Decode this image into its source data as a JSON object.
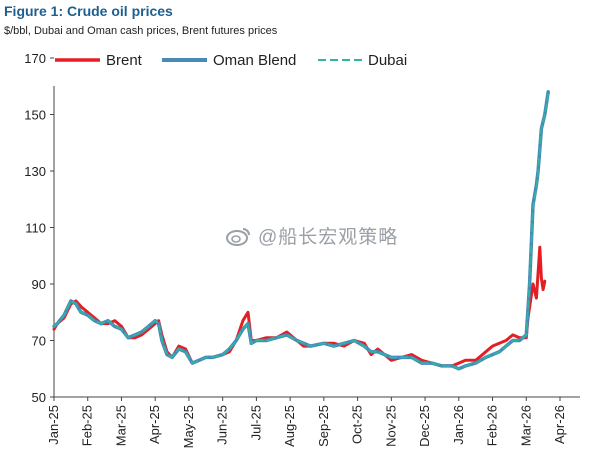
{
  "header": {
    "title": "Figure 1: Crude oil prices",
    "subtitle": "$/bbl, Dubai and Oman cash prices, Brent futures prices"
  },
  "watermark": {
    "text": "@船长宏观策略",
    "icon": "weibo-icon"
  },
  "colors": {
    "brent": "#e31e24",
    "oman": "#4a88b8",
    "dubai": "#2fb3a3"
  },
  "chart_data": {
    "type": "line",
    "title": "Figure 1: Crude oil prices",
    "ylabel": "$/bbl",
    "ylim": [
      50,
      170
    ],
    "yticks": [
      50,
      70,
      90,
      110,
      130,
      150,
      170
    ],
    "xticks": [
      "Jan-25",
      "Feb-25",
      "Mar-25",
      "Apr-25",
      "May-25",
      "Jun-25",
      "Jul-25",
      "Aug-25",
      "Sep-25",
      "Oct-25",
      "Nov-25",
      "Dec-25",
      "Jan-26",
      "Feb-26",
      "Mar-26",
      "Apr-26"
    ],
    "xrange": [
      0,
      15
    ],
    "legend_position": "top",
    "series": [
      {
        "name": "Brent",
        "style": "solid",
        "x": [
          0,
          0.1,
          0.3,
          0.5,
          0.65,
          0.8,
          1.0,
          1.2,
          1.4,
          1.6,
          1.8,
          2.0,
          2.2,
          2.4,
          2.6,
          2.8,
          3.0,
          3.1,
          3.2,
          3.35,
          3.5,
          3.7,
          3.9,
          4.1,
          4.3,
          4.5,
          4.7,
          5.0,
          5.2,
          5.4,
          5.6,
          5.75,
          5.85,
          6.0,
          6.3,
          6.6,
          6.9,
          7.2,
          7.4,
          7.6,
          8.0,
          8.3,
          8.6,
          8.9,
          9.2,
          9.4,
          9.6,
          9.8,
          10.0,
          10.3,
          10.6,
          10.9,
          11.2,
          11.5,
          11.8,
          12.0,
          12.2,
          12.5,
          12.8,
          13.0,
          13.2,
          13.4,
          13.6,
          13.8,
          14.0,
          14.05,
          14.2,
          14.3,
          14.4,
          14.45,
          14.5,
          14.55
        ],
        "y": [
          74,
          76,
          78,
          83,
          84,
          82,
          80,
          78,
          76,
          76,
          77,
          75,
          71,
          71,
          72,
          74,
          76,
          77,
          72,
          66,
          64,
          68,
          67,
          62,
          63,
          64,
          64,
          65,
          66,
          70,
          77,
          80,
          70,
          70,
          71,
          71,
          73,
          70,
          68,
          68,
          69,
          69,
          68,
          70,
          69,
          65,
          67,
          65,
          63,
          64,
          65,
          63,
          62,
          61,
          61,
          62,
          63,
          63,
          66,
          68,
          69,
          70,
          72,
          71,
          71,
          78,
          90,
          85,
          103,
          92,
          88,
          91
        ]
      },
      {
        "name": "Oman Blend",
        "style": "solid",
        "x": [
          0,
          0.1,
          0.3,
          0.5,
          0.65,
          0.8,
          1.0,
          1.2,
          1.4,
          1.6,
          1.8,
          2.0,
          2.2,
          2.4,
          2.6,
          2.8,
          3.0,
          3.1,
          3.2,
          3.35,
          3.5,
          3.7,
          3.9,
          4.1,
          4.3,
          4.5,
          4.7,
          5.0,
          5.2,
          5.4,
          5.6,
          5.75,
          5.85,
          6.0,
          6.3,
          6.6,
          6.9,
          7.2,
          7.4,
          7.6,
          8.0,
          8.3,
          8.6,
          8.9,
          9.2,
          9.4,
          9.6,
          9.8,
          10.0,
          10.3,
          10.6,
          10.9,
          11.2,
          11.5,
          11.8,
          12.0,
          12.2,
          12.5,
          12.8,
          13.0,
          13.2,
          13.4,
          13.6,
          13.8,
          14.0,
          14.1,
          14.2,
          14.3,
          14.35,
          14.45,
          14.55,
          14.65
        ],
        "y": [
          75,
          76,
          79,
          84,
          83,
          80,
          79,
          77,
          76,
          77,
          75,
          74,
          71,
          72,
          73,
          75,
          77,
          76,
          70,
          65,
          64,
          67,
          66,
          62,
          63,
          64,
          64,
          65,
          67,
          70,
          74,
          76,
          69,
          70,
          70,
          71,
          72,
          70,
          69,
          68,
          69,
          68,
          69,
          70,
          68,
          66,
          66,
          65,
          64,
          64,
          64,
          62,
          62,
          61,
          61,
          60,
          61,
          62,
          64,
          65,
          66,
          68,
          70,
          70,
          72,
          90,
          118,
          125,
          130,
          145,
          150,
          158
        ]
      },
      {
        "name": "Dubai",
        "style": "dashed",
        "x": [
          0,
          0.1,
          0.3,
          0.5,
          0.65,
          0.8,
          1.0,
          1.2,
          1.4,
          1.6,
          1.8,
          2.0,
          2.2,
          2.4,
          2.6,
          2.8,
          3.0,
          3.1,
          3.2,
          3.35,
          3.5,
          3.7,
          3.9,
          4.1,
          4.3,
          4.5,
          4.7,
          5.0,
          5.2,
          5.4,
          5.6,
          5.75,
          5.85,
          6.0,
          6.3,
          6.6,
          6.9,
          7.2,
          7.4,
          7.6,
          8.0,
          8.3,
          8.6,
          8.9,
          9.2,
          9.4,
          9.6,
          9.8,
          10.0,
          10.3,
          10.6,
          10.9,
          11.2,
          11.5,
          11.8,
          12.0,
          12.2,
          12.5,
          12.8,
          13.0,
          13.2,
          13.4,
          13.6,
          13.8,
          14.0,
          14.1,
          14.2,
          14.3,
          14.35,
          14.45,
          14.55,
          14.65
        ],
        "y": [
          75,
          76,
          79,
          84,
          83,
          80,
          79,
          77,
          76,
          77,
          75,
          74,
          71,
          72,
          73,
          75,
          77,
          76,
          70,
          65,
          64,
          67,
          66,
          62,
          63,
          64,
          64,
          65,
          67,
          70,
          74,
          76,
          69,
          70,
          70,
          71,
          72,
          70,
          69,
          68,
          69,
          68,
          69,
          70,
          68,
          66,
          66,
          65,
          64,
          64,
          64,
          62,
          62,
          61,
          61,
          60,
          61,
          62,
          64,
          65,
          66,
          68,
          70,
          70,
          72,
          91,
          117,
          124,
          130,
          145,
          150,
          157
        ]
      }
    ]
  }
}
